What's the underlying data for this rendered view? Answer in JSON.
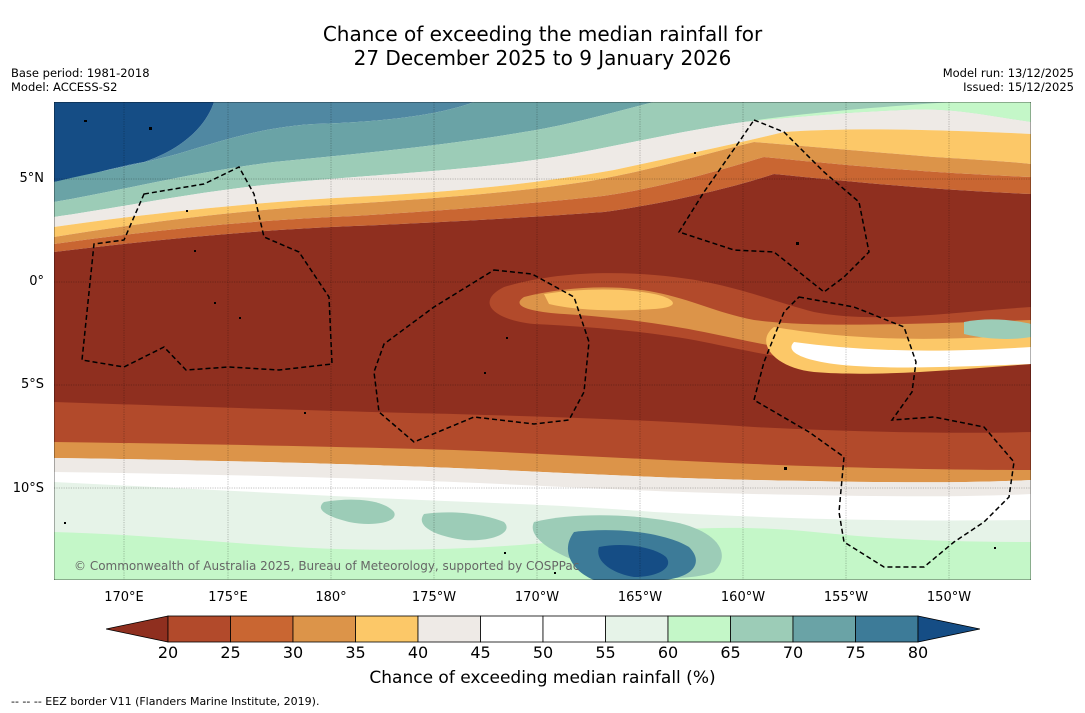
{
  "title_line1": "Chance of exceeding the median rainfall for",
  "title_line2": "27 December 2025 to 9 January 2026",
  "base_period": "Base period: 1981-2018",
  "model": "Model: ACCESS-S2",
  "model_run": "Model run: 13/12/2025",
  "issued": "Issued: 15/12/2025",
  "copyright": "© Commonwealth of Australia 2025, Bureau of Meteorology, supported by COSPPac",
  "eez_legend": "--  --  -- EEZ border V11 (Flanders Marine Institute, 2019).",
  "lat_labels": [
    "5°N",
    "0°",
    "5°S",
    "10°S"
  ],
  "lon_labels": [
    "170°E",
    "175°E",
    "180°",
    "175°W",
    "170°W",
    "165°W",
    "160°W",
    "155°W",
    "150°W"
  ],
  "colorbar": {
    "label": "Chance of exceeding median rainfall (%)",
    "ticks": [
      "20",
      "25",
      "30",
      "35",
      "40",
      "45",
      "50",
      "55",
      "60",
      "65",
      "70",
      "75",
      "80"
    ],
    "colors": [
      "#8f2f1f",
      "#b24a2b",
      "#c96632",
      "#dc9449",
      "#fcc868",
      "#eeeae6",
      "#ffffff",
      "#ffffff",
      "#e6f3e8",
      "#c4f7c8",
      "#9cccb7",
      "#6aa3a6",
      "#3d7b98",
      "#154d85"
    ]
  }
}
